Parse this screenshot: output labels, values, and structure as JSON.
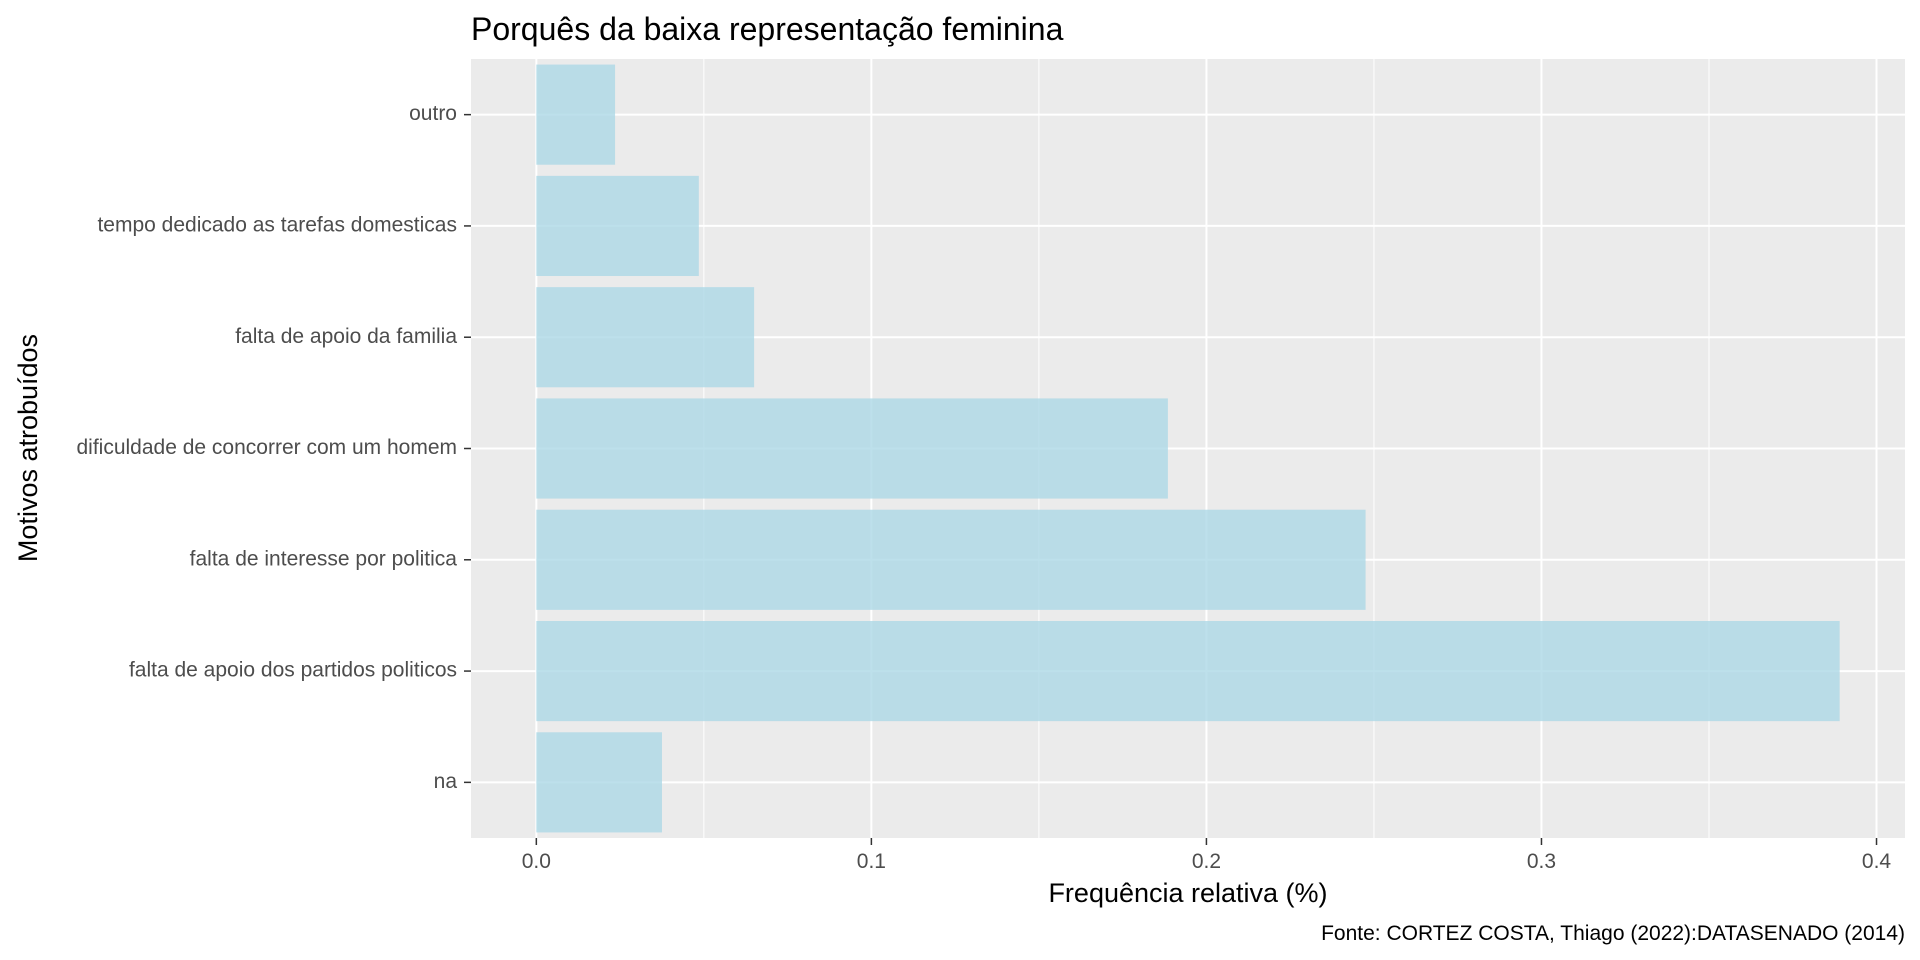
{
  "chart_data": {
    "type": "bar",
    "orientation": "horizontal",
    "title": "Porquês da baixa representação feminina",
    "xlabel": "Frequência relativa (%)",
    "ylabel": "Motivos atrobuídos",
    "caption": "Fonte: CORTEZ COSTA, Thiago (2022):DATASENADO (2014)",
    "categories": [
      "outro",
      "tempo dedicado as tarefas domesticas",
      "falta de apoio da familia",
      "dificuldade de concorrer com um homem",
      "falta de interesse por politica",
      "falta de apoio dos partidos politicos",
      "na"
    ],
    "values": [
      0.0235,
      0.0485,
      0.065,
      0.1885,
      0.2475,
      0.389,
      0.0375
    ],
    "xlim": [
      -0.0195,
      0.4085
    ],
    "xticks": [
      0.0,
      0.1,
      0.2,
      0.3,
      0.4
    ],
    "xtick_labels": [
      "0.0",
      "0.1",
      "0.2",
      "0.3",
      "0.4"
    ],
    "grid": true,
    "bar_color": "#add8e6",
    "panel_background": "#ebebeb",
    "grid_color": "#ffffff"
  }
}
